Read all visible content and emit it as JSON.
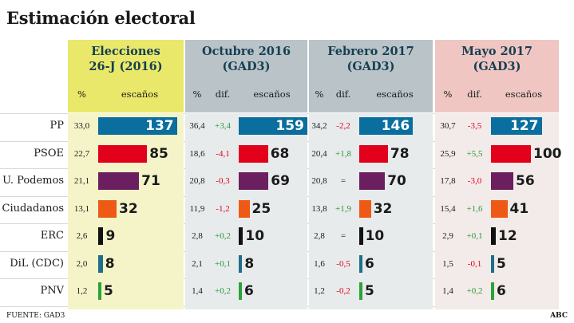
{
  "title": "Estimación electoral",
  "footer": "FUENTE: GAD3",
  "brand": "ABC",
  "chart_data": {
    "type": "table",
    "title": "Estimación electoral",
    "parties": [
      "PP",
      "PSOE",
      "U. Podemos",
      "Ciudadanos",
      "ERC",
      "DiL (CDC)",
      "PNV"
    ],
    "colors": [
      "#0a6e9e",
      "#e2001a",
      "#6b1f5e",
      "#ee5a16",
      "#111111",
      "#1f6e8a",
      "#2aa338"
    ],
    "sections": [
      {
        "title1": "Elecciones",
        "title2": "26-J (2016)",
        "pct_label": "%",
        "seats_label": "escaños",
        "pct": [
          "33,0",
          "22,7",
          "21,1",
          "13,1",
          "2,6",
          "2,0",
          "1,2"
        ],
        "seats": [
          137,
          85,
          71,
          32,
          9,
          8,
          5
        ]
      },
      {
        "title1": "Octubre 2016",
        "title2": "(GAD3)",
        "pct_label": "%",
        "dif_label": "dif.",
        "seats_label": "escaños",
        "pct": [
          "36,4",
          "18,6",
          "20,8",
          "11,9",
          "2,8",
          "2,1",
          "1,4"
        ],
        "dif": [
          "+3,4",
          "-4,1",
          "-0,3",
          "-1,2",
          "+0,2",
          "+0,1",
          "+0,2"
        ],
        "seats": [
          159,
          68,
          69,
          25,
          10,
          8,
          6
        ]
      },
      {
        "title1": "Febrero 2017",
        "title2": "(GAD3)",
        "pct_label": "%",
        "dif_label": "dif.",
        "seats_label": "escaños",
        "pct": [
          "34,2",
          "20,4",
          "20,8",
          "13,8",
          "2,8",
          "1,6",
          "1,2"
        ],
        "dif": [
          "-2,2",
          "+1,8",
          "=",
          "+1,9",
          "=",
          "-0,5",
          "-0,2"
        ],
        "seats": [
          146,
          78,
          70,
          32,
          10,
          6,
          5
        ]
      },
      {
        "title1": "Mayo 2017",
        "title2": "(GAD3)",
        "pct_label": "%",
        "dif_label": "dif.",
        "seats_label": "escaños",
        "pct": [
          "30,7",
          "25,9",
          "17,8",
          "15,4",
          "2,9",
          "1,5",
          "1,4"
        ],
        "dif": [
          "-3,5",
          "+5,5",
          "-3,0",
          "+1,6",
          "+0,1",
          "-0,1",
          "+0,2"
        ],
        "seats": [
          127,
          100,
          56,
          41,
          12,
          5,
          6
        ]
      }
    ]
  }
}
